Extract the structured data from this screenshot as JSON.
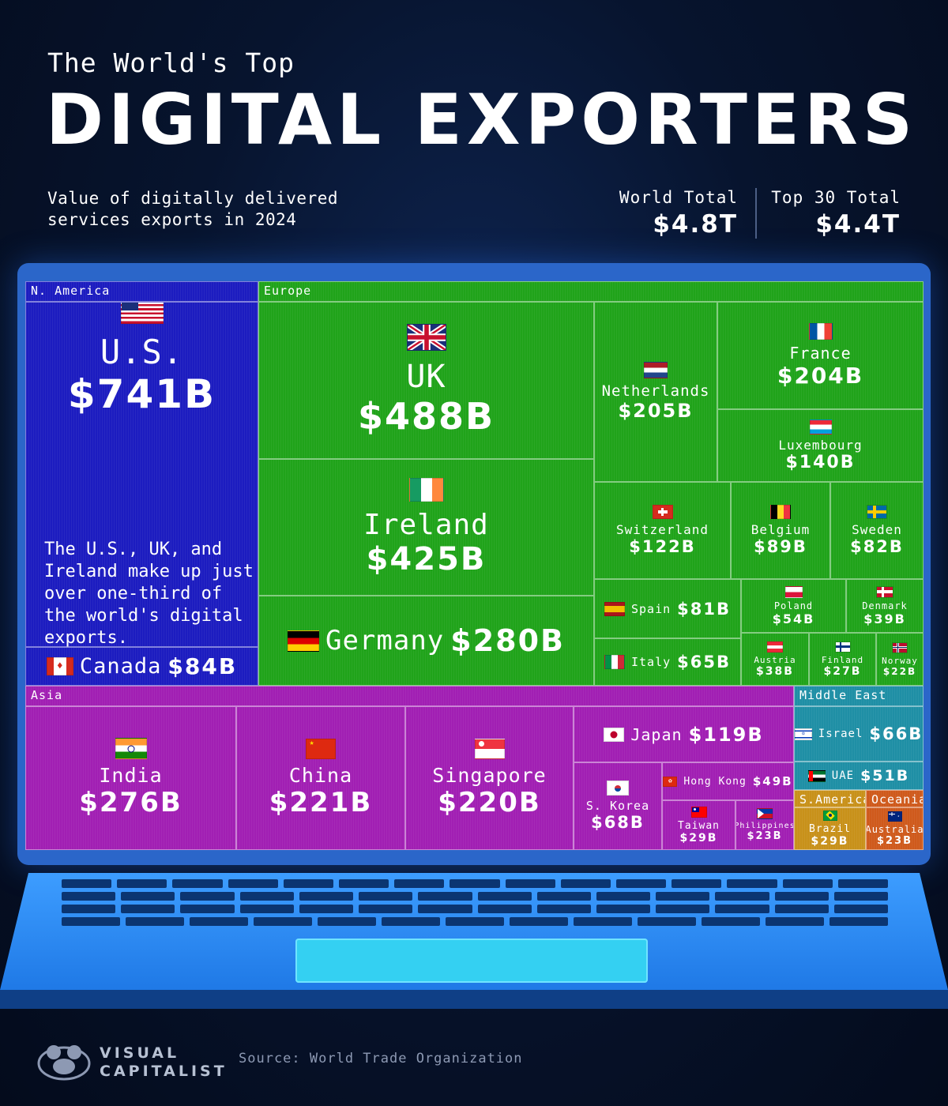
{
  "header": {
    "kicker": "The World's Top",
    "headline": "DIGITAL EXPORTERS",
    "subtitle": "Value of digitally delivered services exports in 2024",
    "stats": [
      {
        "label": "World Total",
        "value": "$4.8T"
      },
      {
        "label": "Top 30 Total",
        "value": "$4.4T"
      }
    ]
  },
  "chart_data": {
    "type": "treemap",
    "unit": "billion USD",
    "regions": [
      {
        "name": "N. America",
        "items": [
          {
            "name": "U.S.",
            "label": "$741B",
            "value": 741
          },
          {
            "name": "Canada",
            "label": "$84B",
            "value": 84
          }
        ]
      },
      {
        "name": "Europe",
        "items": [
          {
            "name": "UK",
            "label": "$488B",
            "value": 488
          },
          {
            "name": "Ireland",
            "label": "$425B",
            "value": 425
          },
          {
            "name": "Germany",
            "label": "$280B",
            "value": 280
          },
          {
            "name": "Netherlands",
            "label": "$205B",
            "value": 205
          },
          {
            "name": "France",
            "label": "$204B",
            "value": 204
          },
          {
            "name": "Luxembourg",
            "label": "$140B",
            "value": 140
          },
          {
            "name": "Switzerland",
            "label": "$122B",
            "value": 122
          },
          {
            "name": "Belgium",
            "label": "$89B",
            "value": 89
          },
          {
            "name": "Sweden",
            "label": "$82B",
            "value": 82
          },
          {
            "name": "Spain",
            "label": "$81B",
            "value": 81
          },
          {
            "name": "Italy",
            "label": "$65B",
            "value": 65
          },
          {
            "name": "Poland",
            "label": "$54B",
            "value": 54
          },
          {
            "name": "Denmark",
            "label": "$39B",
            "value": 39
          },
          {
            "name": "Austria",
            "label": "$38B",
            "value": 38
          },
          {
            "name": "Finland",
            "label": "$27B",
            "value": 27
          },
          {
            "name": "Norway",
            "label": "$22B",
            "value": 22
          }
        ]
      },
      {
        "name": "Asia",
        "items": [
          {
            "name": "India",
            "label": "$276B",
            "value": 276
          },
          {
            "name": "China",
            "label": "$221B",
            "value": 221
          },
          {
            "name": "Singapore",
            "label": "$220B",
            "value": 220
          },
          {
            "name": "Japan",
            "label": "$119B",
            "value": 119
          },
          {
            "name": "S. Korea",
            "label": "$68B",
            "value": 68
          },
          {
            "name": "Hong Kong",
            "label": "$49B",
            "value": 49
          },
          {
            "name": "Taiwan",
            "label": "$29B",
            "value": 29
          },
          {
            "name": "Philippines",
            "label": "$23B",
            "value": 23
          }
        ]
      },
      {
        "name": "Middle East",
        "items": [
          {
            "name": "Israel",
            "label": "$66B",
            "value": 66
          },
          {
            "name": "UAE",
            "label": "$51B",
            "value": 51
          }
        ]
      },
      {
        "name": "S.America",
        "items": [
          {
            "name": "Brazil",
            "label": "$29B",
            "value": 29
          }
        ]
      },
      {
        "name": "Oceania",
        "items": [
          {
            "name": "Australia",
            "label": "$23B",
            "value": 23
          }
        ]
      }
    ],
    "region_colors": {
      "N. America": "#1c1cc0",
      "Europe": "#20a31a",
      "Asia": "#a11fb3",
      "Middle East": "#1f8fa5",
      "S.America": "#c8911a",
      "Oceania": "#cf5a1c"
    }
  },
  "annotation": "The U.S., UK, and Ireland make up just over one-third of the world's digital exports.",
  "footer": {
    "brand_line1": "VISUAL",
    "brand_line2": "CAPITALIST",
    "source": "Source: World Trade Organization"
  }
}
